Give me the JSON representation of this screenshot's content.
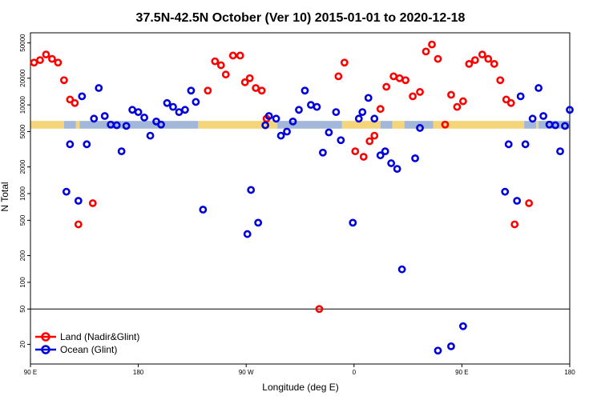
{
  "chart_data": {
    "type": "scatter",
    "title": "37.5N-42.5N October (Ver 10)   2015-01-01 to 2020-12-18",
    "xlabel": "Longitude (deg E)",
    "ylabel": "N Total",
    "x_scale": "linear",
    "y_scale": "log",
    "xlim": [
      90,
      540
    ],
    "ylim": [
      12,
      65000
    ],
    "x_ticks": [
      {
        "value": 90,
        "label": "90 E"
      },
      {
        "value": 180,
        "label": "180"
      },
      {
        "value": 270,
        "label": "90 W"
      },
      {
        "value": 360,
        "label": "0"
      },
      {
        "value": 450,
        "label": "90 E"
      },
      {
        "value": 540,
        "label": "180"
      }
    ],
    "y_ticks": [
      {
        "value": 20,
        "label": "20"
      },
      {
        "value": 50,
        "label": "50"
      },
      {
        "value": 100,
        "label": "100"
      },
      {
        "value": 200,
        "label": "200"
      },
      {
        "value": 500,
        "label": "500"
      },
      {
        "value": 1000,
        "label": "1000"
      },
      {
        "value": 2000,
        "label": "2000"
      },
      {
        "value": 5000,
        "label": "5000"
      },
      {
        "value": 10000,
        "label": "10000"
      },
      {
        "value": 20000,
        "label": "20000"
      },
      {
        "value": 50000,
        "label": "50000"
      }
    ],
    "reference_line": 50,
    "land_ocean_band": {
      "y_range": [
        5400,
        6600
      ],
      "land_color": "#f5d57a",
      "ocean_color": "#a3b8d8",
      "segments": [
        {
          "type": "land",
          "x0": 90,
          "x1": 118
        },
        {
          "type": "ocean",
          "x0": 118,
          "x1": 128
        },
        {
          "type": "land",
          "x0": 128,
          "x1": 131
        },
        {
          "type": "ocean",
          "x0": 131,
          "x1": 230
        },
        {
          "type": "land",
          "x0": 230,
          "x1": 296
        },
        {
          "type": "ocean",
          "x0": 296,
          "x1": 350
        },
        {
          "type": "land",
          "x0": 350,
          "x1": 382
        },
        {
          "type": "ocean",
          "x0": 382,
          "x1": 392
        },
        {
          "type": "land",
          "x0": 392,
          "x1": 402
        },
        {
          "type": "ocean",
          "x0": 402,
          "x1": 426
        },
        {
          "type": "land",
          "x0": 426,
          "x1": 502
        },
        {
          "type": "ocean",
          "x0": 502,
          "x1": 512
        },
        {
          "type": "land",
          "x0": 512,
          "x1": 514
        },
        {
          "type": "ocean",
          "x0": 514,
          "x1": 540
        }
      ]
    },
    "series": [
      {
        "name": "Land (Nadir&Glint)",
        "color": "#ff0000",
        "points": [
          [
            93,
            30000
          ],
          [
            98,
            32000
          ],
          [
            103,
            37000
          ],
          [
            108,
            33000
          ],
          [
            113,
            30000
          ],
          [
            118,
            19000
          ],
          [
            123,
            11500
          ],
          [
            127,
            10500
          ],
          [
            130,
            450
          ],
          [
            142,
            780
          ],
          [
            238,
            14500
          ],
          [
            244,
            31000
          ],
          [
            249,
            28000
          ],
          [
            253,
            22000
          ],
          [
            259,
            36000
          ],
          [
            265,
            36000
          ],
          [
            269,
            18000
          ],
          [
            273,
            20000
          ],
          [
            278,
            15500
          ],
          [
            283,
            14500
          ],
          [
            287,
            7000
          ],
          [
            331,
            50
          ],
          [
            347,
            21000
          ],
          [
            352,
            30000
          ],
          [
            361,
            3000
          ],
          [
            368,
            2600
          ],
          [
            373,
            3900
          ],
          [
            377,
            4500
          ],
          [
            382,
            9000
          ],
          [
            387,
            16000
          ],
          [
            393,
            21000
          ],
          [
            398,
            20000
          ],
          [
            403,
            19000
          ],
          [
            409,
            12500
          ],
          [
            415,
            14000
          ],
          [
            420,
            40000
          ],
          [
            425,
            48000
          ],
          [
            430,
            33000
          ],
          [
            436,
            6000
          ],
          [
            441,
            13000
          ],
          [
            446,
            9500
          ],
          [
            451,
            11000
          ],
          [
            456,
            29000
          ],
          [
            461,
            32000
          ],
          [
            467,
            37000
          ],
          [
            472,
            33000
          ],
          [
            477,
            29000
          ],
          [
            482,
            19000
          ],
          [
            487,
            11500
          ],
          [
            491,
            10500
          ],
          [
            494,
            450
          ],
          [
            506,
            780
          ]
        ]
      },
      {
        "name": "Ocean (Glint)",
        "color": "#0000dd",
        "points": [
          [
            120,
            1050
          ],
          [
            123,
            3600
          ],
          [
            130,
            830
          ],
          [
            133,
            12500
          ],
          [
            137,
            3600
          ],
          [
            143,
            7000
          ],
          [
            147,
            15500
          ],
          [
            152,
            7500
          ],
          [
            157,
            6000
          ],
          [
            162,
            5900
          ],
          [
            166,
            3000
          ],
          [
            170,
            5800
          ],
          [
            175,
            8800
          ],
          [
            180,
            8300
          ],
          [
            185,
            7200
          ],
          [
            190,
            4500
          ],
          [
            195,
            6500
          ],
          [
            199,
            6000
          ],
          [
            204,
            10500
          ],
          [
            209,
            9500
          ],
          [
            214,
            8300
          ],
          [
            219,
            8800
          ],
          [
            224,
            14500
          ],
          [
            228,
            10800
          ],
          [
            234,
            660
          ],
          [
            271,
            350
          ],
          [
            274,
            1100
          ],
          [
            280,
            470
          ],
          [
            286,
            5900
          ],
          [
            289,
            7500
          ],
          [
            295,
            7000
          ],
          [
            299,
            4500
          ],
          [
            304,
            5000
          ],
          [
            309,
            6500
          ],
          [
            314,
            8800
          ],
          [
            319,
            14500
          ],
          [
            324,
            10000
          ],
          [
            329,
            9500
          ],
          [
            334,
            2900
          ],
          [
            339,
            4900
          ],
          [
            345,
            8300
          ],
          [
            349,
            4000
          ],
          [
            359,
            470
          ],
          [
            364,
            7000
          ],
          [
            367,
            8300
          ],
          [
            372,
            12000
          ],
          [
            377,
            7000
          ],
          [
            382,
            2700
          ],
          [
            386,
            3000
          ],
          [
            391,
            2200
          ],
          [
            396,
            1900
          ],
          [
            400,
            140
          ],
          [
            411,
            2500
          ],
          [
            415,
            5500
          ],
          [
            430,
            17
          ],
          [
            441,
            19
          ],
          [
            451,
            32
          ],
          [
            486,
            1050
          ],
          [
            489,
            3600
          ],
          [
            496,
            830
          ],
          [
            499,
            12500
          ],
          [
            503,
            3600
          ],
          [
            509,
            7000
          ],
          [
            514,
            15500
          ],
          [
            518,
            7500
          ],
          [
            523,
            6000
          ],
          [
            528,
            5900
          ],
          [
            532,
            3000
          ],
          [
            536,
            5800
          ],
          [
            540,
            8800
          ]
        ]
      }
    ],
    "legend": {
      "position": "bottom-left",
      "entries": [
        "Land (Nadir&Glint)",
        "Ocean (Glint)"
      ]
    }
  }
}
